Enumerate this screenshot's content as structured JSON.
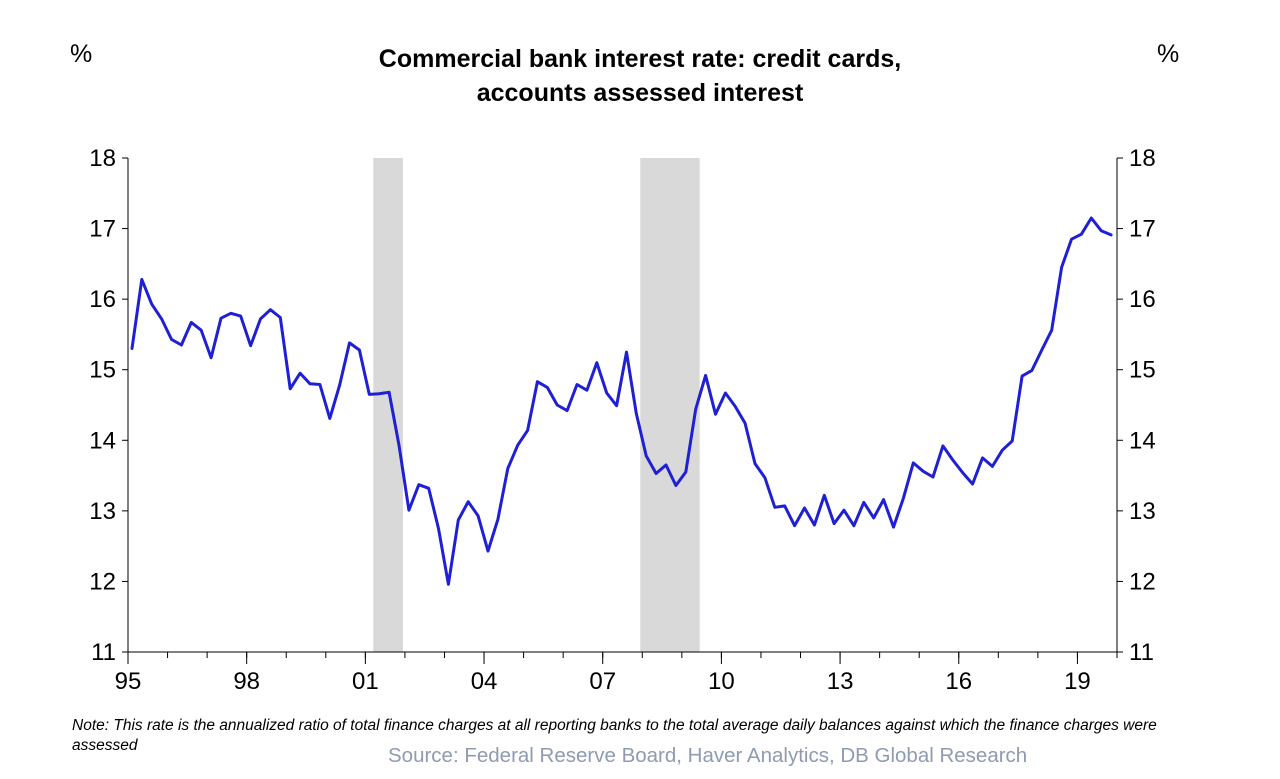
{
  "chart_data": {
    "type": "line",
    "title": "Commercial bank interest rate: credit cards,",
    "title_line2": "accounts assessed interest",
    "ylabel_left": "%",
    "ylabel_right": "%",
    "ylim": [
      11,
      18
    ],
    "yticks": [
      "11",
      "12",
      "13",
      "14",
      "15",
      "16",
      "17",
      "18"
    ],
    "xlim": [
      1995.0,
      2020.0
    ],
    "xticks": [
      {
        "label": "95",
        "x": 1995
      },
      {
        "label": "98",
        "x": 1998
      },
      {
        "label": "01",
        "x": 2001
      },
      {
        "label": "04",
        "x": 2004
      },
      {
        "label": "07",
        "x": 2007
      },
      {
        "label": "10",
        "x": 2010
      },
      {
        "label": "13",
        "x": 2013
      },
      {
        "label": "16",
        "x": 2016
      },
      {
        "label": "19",
        "x": 2019
      }
    ],
    "recessions": [
      [
        2001.2,
        2001.95
      ],
      [
        2007.95,
        2009.45
      ]
    ],
    "recession_color": "#d9d9d9",
    "line_color": "#1f1fd6",
    "series": [
      {
        "x": [
          1995.1,
          1995.35,
          1995.6,
          1995.85,
          1996.1,
          1996.35,
          1996.6,
          1996.85,
          1997.1,
          1997.35,
          1997.6,
          1997.85,
          1998.1,
          1998.35,
          1998.6,
          1998.85,
          1999.1,
          1999.35,
          1999.6,
          1999.85,
          2000.1,
          2000.35,
          2000.6,
          2000.85,
          2001.1,
          2001.35,
          2001.6,
          2001.85,
          2002.1,
          2002.35,
          2002.6,
          2002.85,
          2003.1,
          2003.35,
          2003.6,
          2003.85,
          2004.1,
          2004.35,
          2004.6,
          2004.85,
          2005.1,
          2005.35,
          2005.6,
          2005.85,
          2006.1,
          2006.35,
          2006.6,
          2006.85,
          2007.1,
          2007.35,
          2007.6,
          2007.85,
          2008.1,
          2008.35,
          2008.6,
          2008.85,
          2009.1,
          2009.35,
          2009.6,
          2009.85,
          2010.1,
          2010.35,
          2010.6,
          2010.85,
          2011.1,
          2011.35,
          2011.6,
          2011.85,
          2012.1,
          2012.35,
          2012.6,
          2012.85,
          2013.1,
          2013.35,
          2013.6,
          2013.85,
          2014.1,
          2014.35,
          2014.6,
          2014.85,
          2015.1,
          2015.35,
          2015.6,
          2015.85,
          2016.1,
          2016.35,
          2016.6,
          2016.85,
          2017.1,
          2017.35,
          2017.6,
          2017.85,
          2018.1,
          2018.35,
          2018.6,
          2018.85,
          2019.1,
          2019.35,
          2019.6,
          2019.85
        ],
        "values": [
          15.3,
          16.28,
          15.93,
          15.72,
          15.43,
          15.35,
          15.67,
          15.56,
          15.17,
          15.73,
          15.8,
          15.76,
          15.34,
          15.72,
          15.85,
          15.74,
          14.73,
          14.95,
          14.8,
          14.79,
          14.31,
          14.78,
          15.38,
          15.28,
          14.65,
          14.66,
          14.68,
          13.93,
          13.01,
          13.37,
          13.32,
          12.75,
          11.96,
          12.87,
          13.13,
          12.93,
          12.43,
          12.88,
          13.6,
          13.93,
          14.14,
          14.83,
          14.75,
          14.5,
          14.42,
          14.79,
          14.71,
          15.1,
          14.67,
          14.49,
          15.25,
          14.38,
          13.78,
          13.53,
          13.65,
          13.36,
          13.55,
          14.44,
          14.92,
          14.37,
          14.67,
          14.48,
          14.24,
          13.67,
          13.47,
          13.05,
          13.07,
          12.79,
          13.04,
          12.8,
          13.22,
          12.82,
          13.01,
          12.79,
          13.12,
          12.9,
          13.16,
          12.77,
          13.18,
          13.68,
          13.56,
          13.48,
          13.92,
          13.72,
          13.54,
          13.38,
          13.75,
          13.63,
          13.86,
          13.99,
          14.91,
          14.99,
          15.28,
          15.56,
          16.45,
          16.85,
          16.92,
          17.15,
          16.97,
          16.91
        ]
      }
    ]
  },
  "note": "Note: This rate is the annualized ratio of total finance charges at all reporting banks to the total average daily balances against which the finance charges were assessed",
  "source": "Source: Federal Reserve Board, Haver Analytics, DB Global Research"
}
